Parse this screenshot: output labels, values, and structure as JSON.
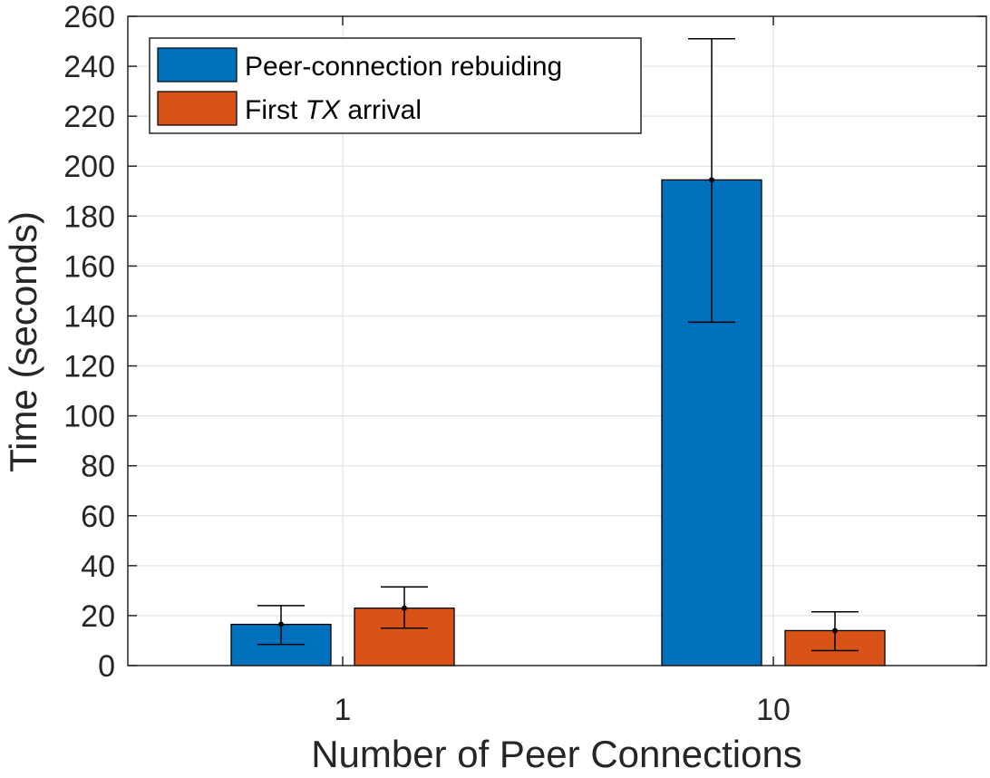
{
  "chart_data": {
    "type": "bar",
    "title": "",
    "xlabel": "Number of Peer Connections",
    "ylabel": "Time (seconds)",
    "categories": [
      "1",
      "10"
    ],
    "ylim": [
      0,
      260
    ],
    "yticks": [
      0,
      20,
      40,
      60,
      80,
      100,
      120,
      140,
      160,
      180,
      200,
      220,
      240,
      260
    ],
    "grid": true,
    "legend_position": "top-left",
    "series": [
      {
        "name": "Peer-connection rebuiding",
        "color": "#0072BD",
        "values": [
          16.5,
          194.5
        ],
        "error_low": [
          8.5,
          137.5
        ],
        "error_high": [
          24,
          251
        ]
      },
      {
        "name_parts": [
          "First ",
          "TX",
          " arrival"
        ],
        "name": "First TX arrival",
        "color": "#D95319",
        "values": [
          23,
          14
        ],
        "error_low": [
          15,
          6
        ],
        "error_high": [
          31.5,
          21.5
        ]
      }
    ]
  }
}
